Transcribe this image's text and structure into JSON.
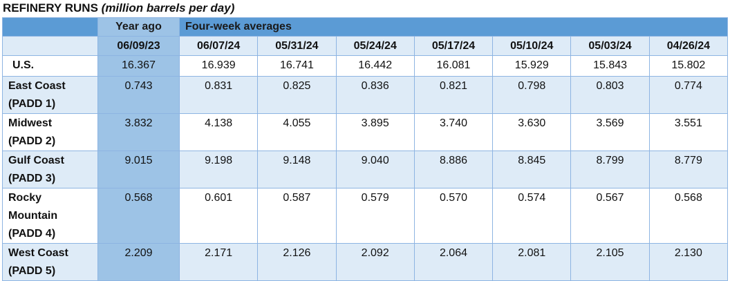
{
  "title": {
    "main": "REFINERY RUNS",
    "unit": "(million barrels per day)"
  },
  "table": {
    "group_headers": [
      "Year ago",
      "Four-week averages"
    ],
    "columns": [
      "06/09/23",
      "06/07/24",
      "05/31/24",
      "05/24/24",
      "05/17/24",
      "05/10/24",
      "05/03/24",
      "04/26/24"
    ],
    "rows": [
      {
        "label": [
          "U.S."
        ],
        "values": [
          "16.367",
          "16.939",
          "16.741",
          "16.442",
          "16.081",
          "15.929",
          "15.843",
          "15.802"
        ]
      },
      {
        "label": [
          "East Coast",
          "(PADD 1)"
        ],
        "values": [
          "0.743",
          "0.831",
          "0.825",
          "0.836",
          "0.821",
          "0.798",
          "0.803",
          "0.774"
        ]
      },
      {
        "label": [
          "Midwest",
          "(PADD 2)"
        ],
        "values": [
          "3.832",
          "4.138",
          "4.055",
          "3.895",
          "3.740",
          "3.630",
          "3.569",
          "3.551"
        ]
      },
      {
        "label": [
          "Gulf Coast",
          "(PADD 3)"
        ],
        "values": [
          "9.015",
          "9.198",
          "9.148",
          "9.040",
          "8.886",
          "8.845",
          "8.799",
          "8.779"
        ]
      },
      {
        "label": [
          "Rocky",
          "Mountain",
          "(PADD 4)"
        ],
        "values": [
          "0.568",
          "0.601",
          "0.587",
          "0.579",
          "0.570",
          "0.574",
          "0.567",
          "0.568"
        ]
      },
      {
        "label": [
          "West Coast",
          "(PADD 5)"
        ],
        "values": [
          "2.209",
          "2.171",
          "2.126",
          "2.092",
          "2.064",
          "2.081",
          "2.105",
          "2.130"
        ]
      }
    ]
  }
}
